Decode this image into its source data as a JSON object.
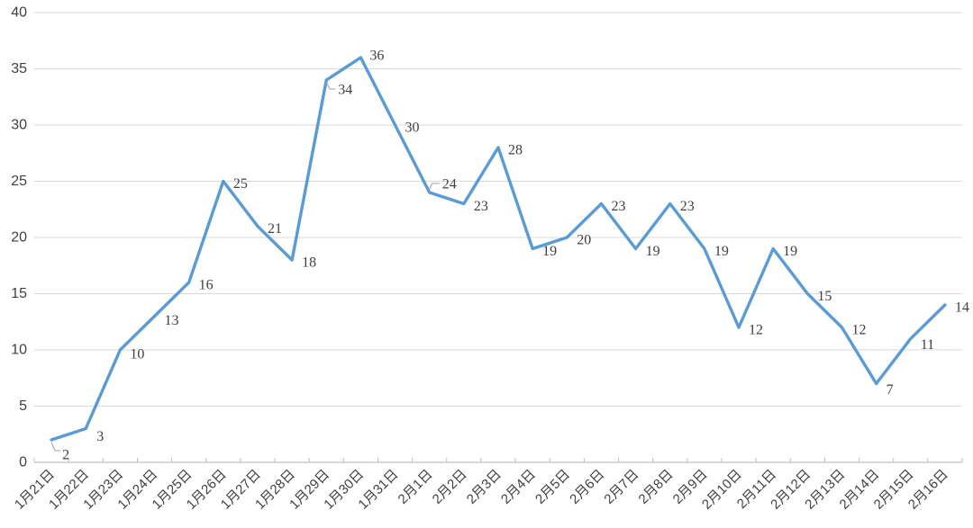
{
  "chart_data": {
    "type": "line",
    "title": "",
    "xlabel": "",
    "ylabel": "",
    "categories": [
      "1月21日",
      "1月22日",
      "1月23日",
      "1月24日",
      "1月25日",
      "1月26日",
      "1月27日",
      "1月28日",
      "1月29日",
      "1月30日",
      "1月31日",
      "2月1日",
      "2月2日",
      "2月3日",
      "2月4日",
      "2月5日",
      "2月6日",
      "2月7日",
      "2月8日",
      "2月9日",
      "2月10日",
      "2月11日",
      "2月12日",
      "2月13日",
      "2月14日",
      "2月15日",
      "2月16日"
    ],
    "values": [
      2,
      3,
      10,
      13,
      16,
      25,
      21,
      18,
      34,
      36,
      30,
      24,
      23,
      28,
      19,
      20,
      23,
      19,
      23,
      19,
      12,
      19,
      15,
      12,
      7,
      11,
      14
    ],
    "ylim": [
      0,
      40
    ],
    "yticks": [
      0,
      5,
      10,
      15,
      20,
      25,
      30,
      35,
      40
    ],
    "grid": true,
    "legend": "none",
    "data_labels_visible": true,
    "x_tick_rotation_deg": 45,
    "labels_with_leader_lines": [
      0,
      8,
      11
    ],
    "colors": {
      "line": "#5B9BD5",
      "gridline": "#D9D9D9",
      "axis": "#BFBFBF",
      "tick_text": "#404040",
      "data_label_text": "#404040",
      "leader_line": "#9E9E9E",
      "background": "#FFFFFF"
    }
  }
}
